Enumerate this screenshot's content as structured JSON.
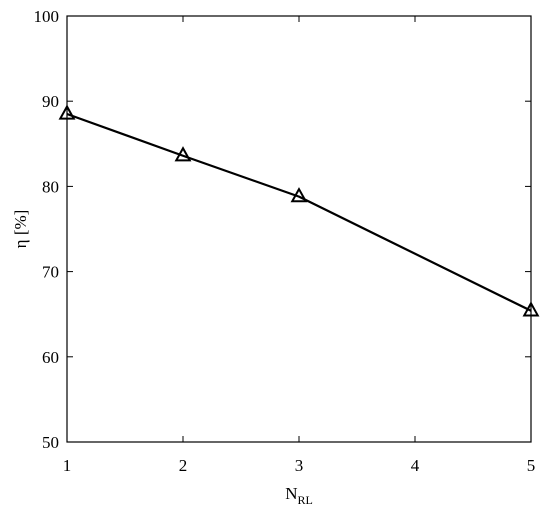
{
  "chart_data": {
    "type": "line",
    "xlabel": {
      "base": "N",
      "subscript": "RL"
    },
    "ylabel": "η [%]",
    "x": [
      1,
      2,
      3,
      5
    ],
    "series": [
      {
        "values": [
          88.5,
          83.6,
          78.8,
          65.4
        ],
        "marker": "triangle-open",
        "color": "#000000"
      }
    ],
    "xlim": [
      1,
      5
    ],
    "ylim": [
      50,
      100
    ],
    "xticks": [
      1,
      2,
      3,
      4,
      5
    ],
    "yticks": [
      50,
      60,
      70,
      80,
      90,
      100
    ],
    "grid": false,
    "box": true,
    "tick_direction": "in"
  }
}
